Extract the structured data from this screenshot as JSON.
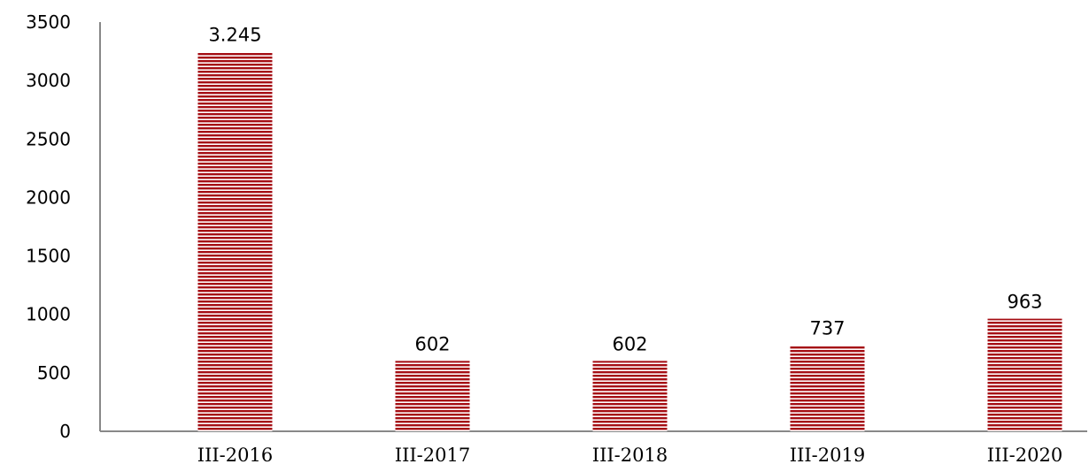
{
  "chart_data": {
    "type": "bar",
    "categories": [
      "III-2016",
      "III-2017",
      "III-2018",
      "III-2019",
      "III-2020"
    ],
    "values": [
      3245,
      602,
      602,
      737,
      963
    ],
    "data_labels": [
      "3.245",
      "602",
      "602",
      "737",
      "963"
    ],
    "y_ticks": [
      "0",
      "500",
      "1000",
      "1500",
      "2000",
      "2500",
      "3000",
      "3500"
    ],
    "ylim": [
      0,
      3500
    ],
    "grid": false,
    "legend": "none",
    "bar_color": "#a50d14",
    "bar_pattern": "horizontal-stripes"
  }
}
